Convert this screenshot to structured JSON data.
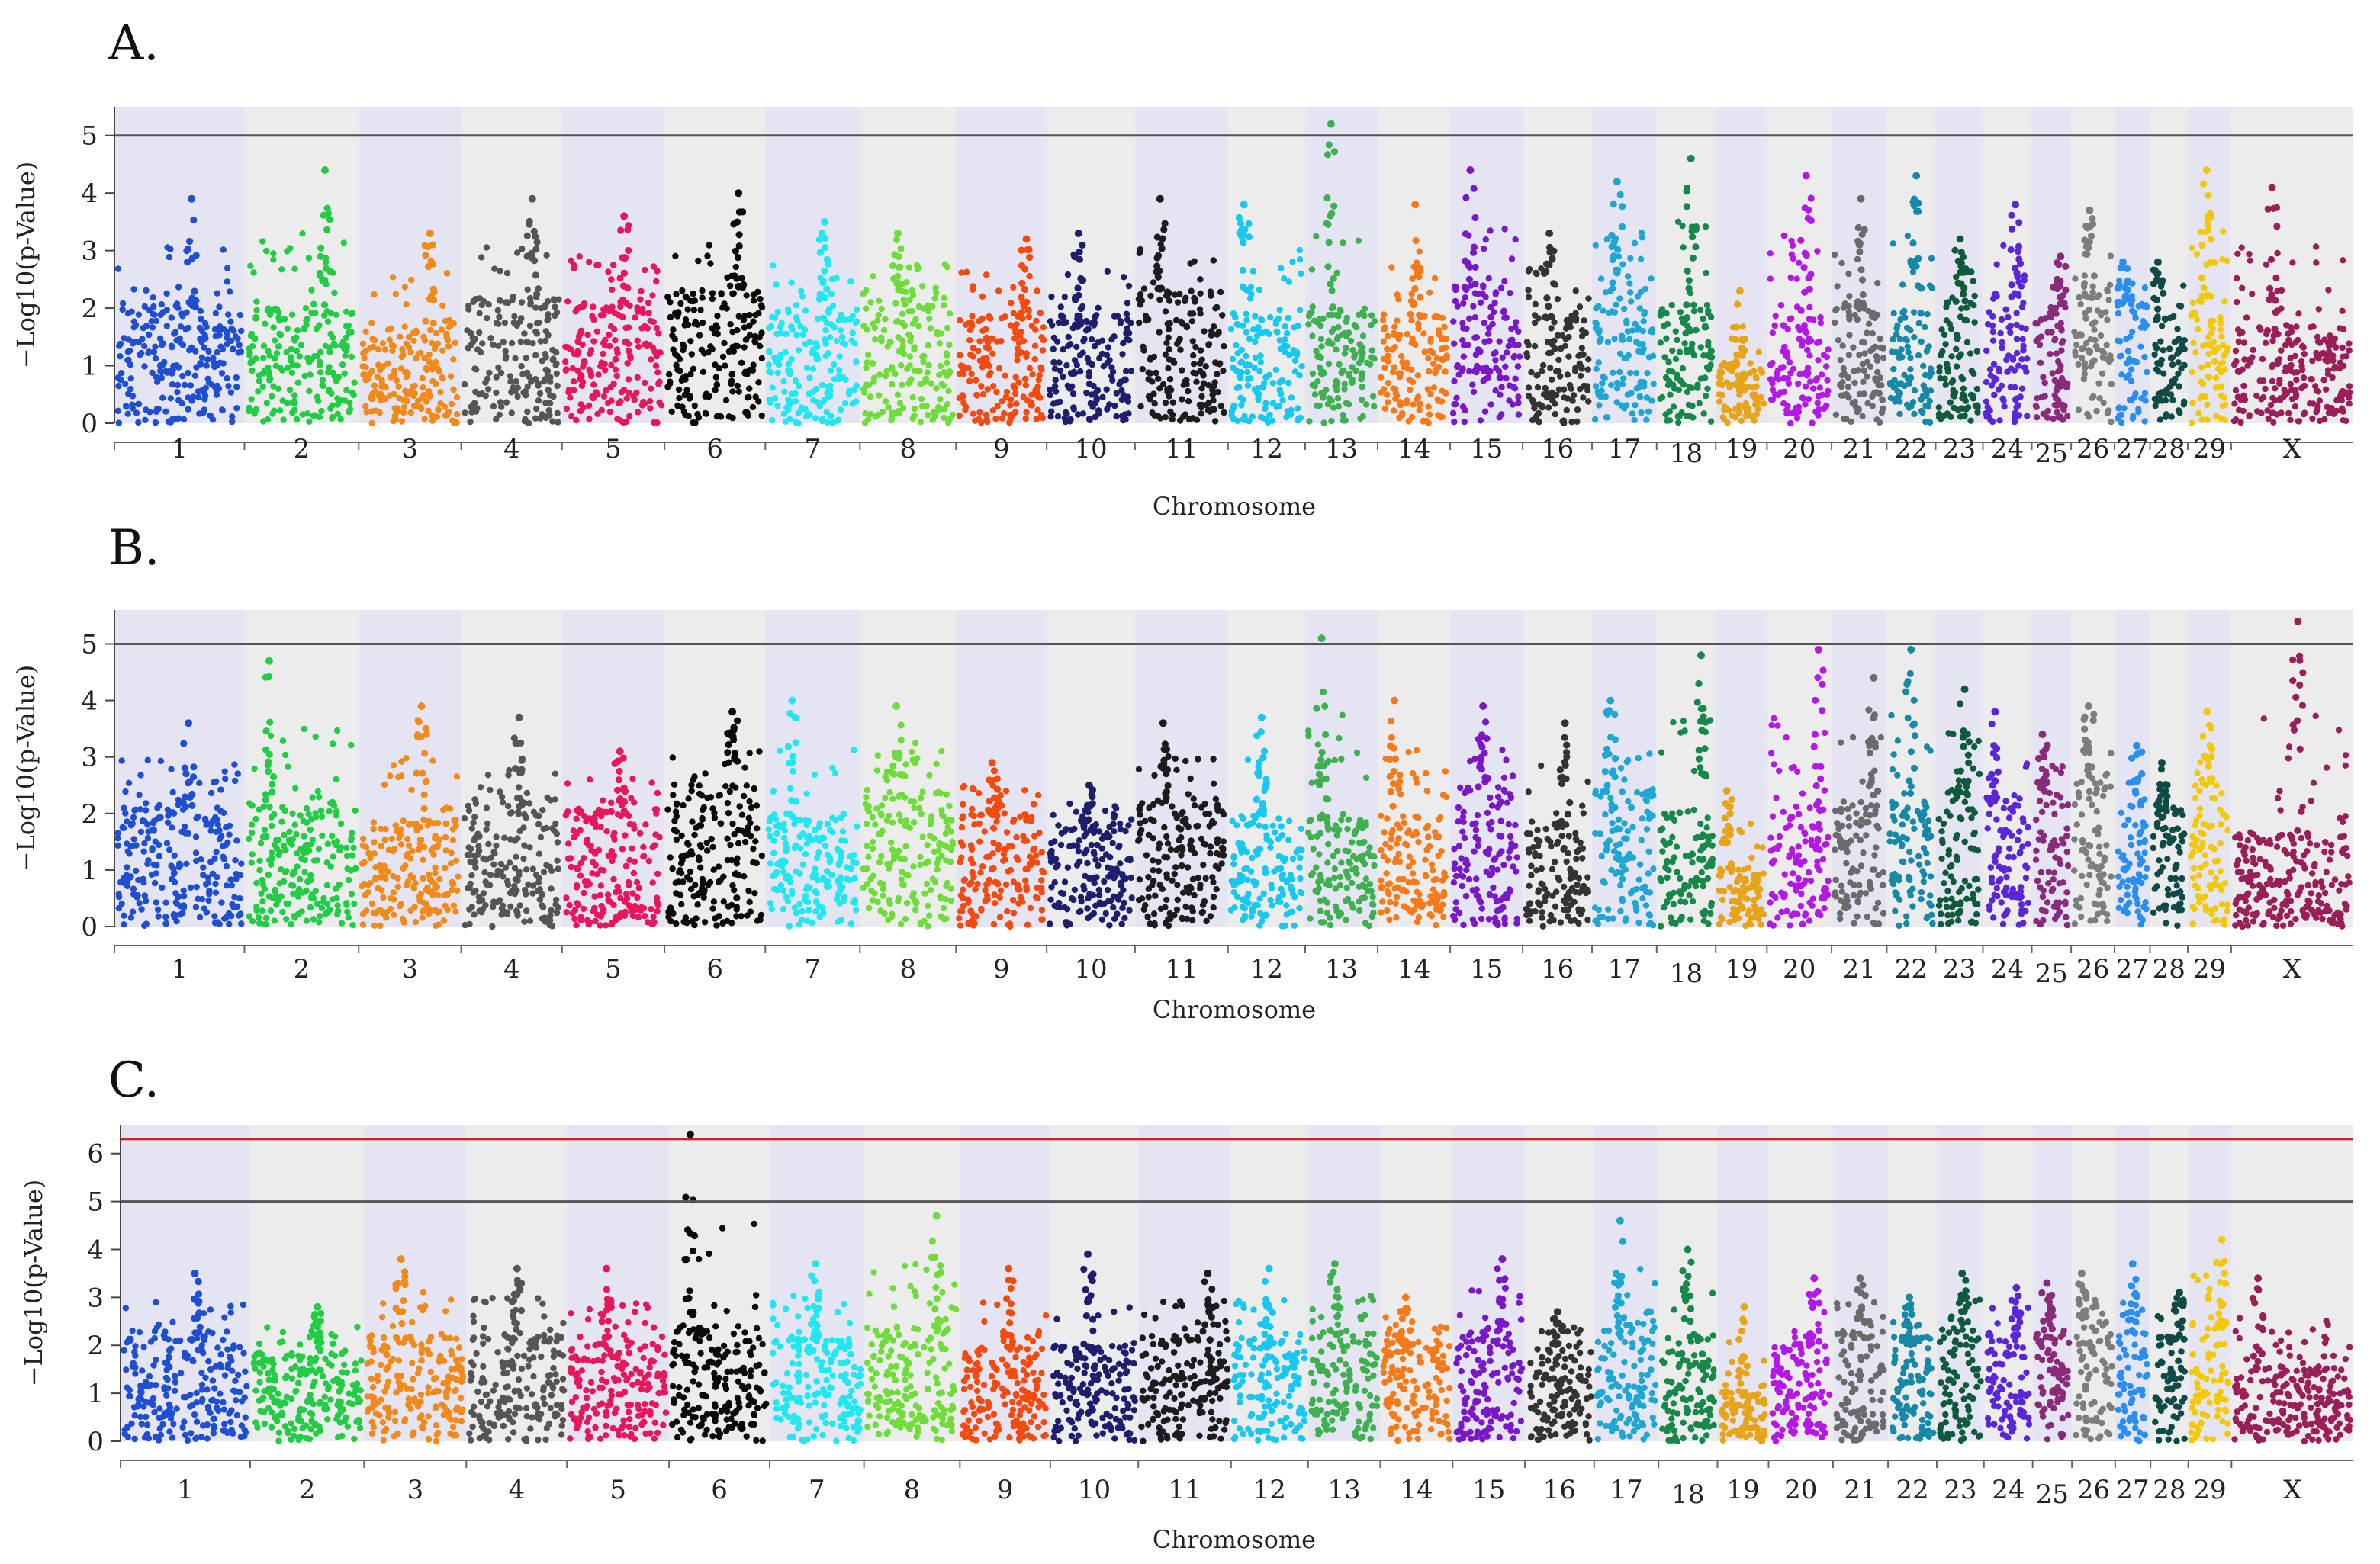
{
  "chart_data": [
    {
      "type": "scatter",
      "subtype": "manhattan",
      "panel_label": "A.",
      "xlabel": "Chromosome",
      "ylabel": "−Log10(p-Value)",
      "ylim": [
        0,
        5.5
      ],
      "yticks": [
        0,
        1,
        2,
        3,
        4,
        5
      ],
      "thresholds": [
        {
          "value": 5.0,
          "color": "#555555"
        }
      ],
      "categories": [
        "1",
        "2",
        "3",
        "4",
        "5",
        "6",
        "7",
        "8",
        "9",
        "10",
        "11",
        "12",
        "13",
        "14",
        "15",
        "16",
        "17",
        "18",
        "19",
        "20",
        "21",
        "22",
        "23",
        "24",
        "25",
        "26",
        "27",
        "28",
        "29",
        "X"
      ],
      "series": [
        {
          "name": "1",
          "color": "#1f4fd0",
          "base": 2.0,
          "peak": 3.9
        },
        {
          "name": "2",
          "color": "#22cc44",
          "base": 1.9,
          "peak": 4.4
        },
        {
          "name": "3",
          "color": "#f08a1a",
          "base": 1.6,
          "peak": 3.3
        },
        {
          "name": "4",
          "color": "#555555",
          "base": 2.1,
          "peak": 3.9
        },
        {
          "name": "5",
          "color": "#e6175a",
          "base": 2.0,
          "peak": 3.6
        },
        {
          "name": "6",
          "color": "#0a0a0a",
          "base": 2.2,
          "peak": 4.0
        },
        {
          "name": "7",
          "color": "#22e6f0",
          "base": 1.8,
          "peak": 3.5
        },
        {
          "name": "8",
          "color": "#6fdc3c",
          "base": 2.2,
          "peak": 3.3
        },
        {
          "name": "9",
          "color": "#f24a0f",
          "base": 1.8,
          "peak": 3.2
        },
        {
          "name": "10",
          "color": "#1e1e6e",
          "base": 1.8,
          "peak": 3.3
        },
        {
          "name": "11",
          "color": "#1c1c1c",
          "base": 2.2,
          "peak": 3.9
        },
        {
          "name": "12",
          "color": "#18c8f0",
          "base": 1.9,
          "peak": 3.8
        },
        {
          "name": "13",
          "color": "#3fb04f",
          "base": 1.9,
          "peak": 5.2
        },
        {
          "name": "14",
          "color": "#f57a1a",
          "base": 1.8,
          "peak": 3.8
        },
        {
          "name": "15",
          "color": "#7a18c8",
          "base": 2.3,
          "peak": 4.4
        },
        {
          "name": "16",
          "color": "#333333",
          "base": 1.8,
          "peak": 3.3
        },
        {
          "name": "17",
          "color": "#1fa6d2",
          "base": 2.3,
          "peak": 4.2
        },
        {
          "name": "18",
          "color": "#16884a",
          "base": 2.0,
          "peak": 4.6
        },
        {
          "name": "19",
          "color": "#e8a418",
          "base": 1.0,
          "peak": 2.3
        },
        {
          "name": "20",
          "color": "#b418e6",
          "base": 1.8,
          "peak": 4.3
        },
        {
          "name": "21",
          "color": "#6b6b6b",
          "base": 2.0,
          "peak": 3.9
        },
        {
          "name": "22",
          "color": "#1689a8",
          "base": 1.9,
          "peak": 4.3
        },
        {
          "name": "23",
          "color": "#0e5a3a",
          "base": 2.1,
          "peak": 3.2
        },
        {
          "name": "24",
          "color": "#5a26d8",
          "base": 2.2,
          "peak": 3.8
        },
        {
          "name": "25",
          "color": "#8a2a7a",
          "base": 1.9,
          "peak": 2.9
        },
        {
          "name": "26",
          "color": "#7d7d7d",
          "base": 2.4,
          "peak": 3.7
        },
        {
          "name": "27",
          "color": "#2a8ef0",
          "base": 2.0,
          "peak": 2.8
        },
        {
          "name": "28",
          "color": "#0f4a46",
          "base": 1.8,
          "peak": 2.8
        },
        {
          "name": "29",
          "color": "#f2c80a",
          "base": 2.2,
          "peak": 4.4
        },
        {
          "name": "X",
          "color": "#9a1e5a",
          "base": 1.6,
          "peak": 4.1
        }
      ]
    },
    {
      "type": "scatter",
      "subtype": "manhattan",
      "panel_label": "B.",
      "xlabel": "Chromosome",
      "ylabel": "−Log10(p-Value)",
      "ylim": [
        0,
        5.6
      ],
      "yticks": [
        0,
        1,
        2,
        3,
        4,
        5
      ],
      "thresholds": [
        {
          "value": 5.0,
          "color": "#555555"
        }
      ],
      "categories": [
        "1",
        "2",
        "3",
        "4",
        "5",
        "6",
        "7",
        "8",
        "9",
        "10",
        "11",
        "12",
        "13",
        "14",
        "15",
        "16",
        "17",
        "18",
        "19",
        "20",
        "21",
        "22",
        "23",
        "24",
        "25",
        "26",
        "27",
        "28",
        "29",
        "X"
      ],
      "series": [
        {
          "name": "1",
          "color": "#1f4fd0",
          "base": 2.0,
          "peak": 3.6
        },
        {
          "name": "2",
          "color": "#22cc44",
          "base": 2.1,
          "peak": 4.7
        },
        {
          "name": "3",
          "color": "#f08a1a",
          "base": 1.8,
          "peak": 3.9
        },
        {
          "name": "4",
          "color": "#555555",
          "base": 2.1,
          "peak": 3.7
        },
        {
          "name": "5",
          "color": "#e6175a",
          "base": 2.0,
          "peak": 3.1
        },
        {
          "name": "6",
          "color": "#0a0a0a",
          "base": 2.4,
          "peak": 3.8
        },
        {
          "name": "7",
          "color": "#22e6f0",
          "base": 1.9,
          "peak": 4.0
        },
        {
          "name": "8",
          "color": "#6fdc3c",
          "base": 2.3,
          "peak": 3.9
        },
        {
          "name": "9",
          "color": "#f24a0f",
          "base": 1.9,
          "peak": 2.9
        },
        {
          "name": "10",
          "color": "#1e1e6e",
          "base": 1.7,
          "peak": 2.5
        },
        {
          "name": "11",
          "color": "#1c1c1c",
          "base": 2.2,
          "peak": 3.6
        },
        {
          "name": "12",
          "color": "#18c8f0",
          "base": 1.9,
          "peak": 3.7
        },
        {
          "name": "13",
          "color": "#3fb04f",
          "base": 1.9,
          "peak": 5.1
        },
        {
          "name": "14",
          "color": "#f57a1a",
          "base": 1.9,
          "peak": 4.0
        },
        {
          "name": "15",
          "color": "#7a18c8",
          "base": 2.4,
          "peak": 3.9
        },
        {
          "name": "16",
          "color": "#333333",
          "base": 1.8,
          "peak": 3.6
        },
        {
          "name": "17",
          "color": "#1fa6d2",
          "base": 2.3,
          "peak": 4.0
        },
        {
          "name": "18",
          "color": "#16884a",
          "base": 2.0,
          "peak": 4.8
        },
        {
          "name": "19",
          "color": "#e8a418",
          "base": 1.0,
          "peak": 2.4
        },
        {
          "name": "20",
          "color": "#b418e6",
          "base": 2.0,
          "peak": 4.9
        },
        {
          "name": "21",
          "color": "#6b6b6b",
          "base": 2.1,
          "peak": 4.4
        },
        {
          "name": "22",
          "color": "#1689a8",
          "base": 2.1,
          "peak": 4.9
        },
        {
          "name": "23",
          "color": "#0e5a3a",
          "base": 2.3,
          "peak": 4.2
        },
        {
          "name": "24",
          "color": "#5a26d8",
          "base": 2.2,
          "peak": 3.8
        },
        {
          "name": "25",
          "color": "#8a2a7a",
          "base": 2.2,
          "peak": 3.4
        },
        {
          "name": "26",
          "color": "#7d7d7d",
          "base": 2.5,
          "peak": 3.9
        },
        {
          "name": "27",
          "color": "#2a8ef0",
          "base": 2.1,
          "peak": 3.2
        },
        {
          "name": "28",
          "color": "#0f4a46",
          "base": 2.0,
          "peak": 2.9
        },
        {
          "name": "29",
          "color": "#f2c80a",
          "base": 2.4,
          "peak": 3.8
        },
        {
          "name": "X",
          "color": "#9a1e5a",
          "base": 1.6,
          "peak": 5.4
        }
      ]
    },
    {
      "type": "scatter",
      "subtype": "manhattan",
      "panel_label": "C.",
      "xlabel": "Chromosome",
      "ylabel": "−Log10(p-Value)",
      "ylim": [
        0,
        6.6
      ],
      "yticks": [
        0,
        1,
        2,
        3,
        4,
        5,
        6
      ],
      "thresholds": [
        {
          "value": 5.0,
          "color": "#555555"
        },
        {
          "value": 6.3,
          "color": "#cc2222"
        }
      ],
      "categories": [
        "1",
        "2",
        "3",
        "4",
        "5",
        "6",
        "7",
        "8",
        "9",
        "10",
        "11",
        "12",
        "13",
        "14",
        "15",
        "16",
        "17",
        "18",
        "19",
        "20",
        "21",
        "22",
        "23",
        "24",
        "25",
        "26",
        "27",
        "28",
        "29",
        "X"
      ],
      "series": [
        {
          "name": "1",
          "color": "#1f4fd0",
          "base": 2.2,
          "peak": 3.5
        },
        {
          "name": "2",
          "color": "#22cc44",
          "base": 1.8,
          "peak": 2.8
        },
        {
          "name": "3",
          "color": "#f08a1a",
          "base": 2.1,
          "peak": 3.8
        },
        {
          "name": "4",
          "color": "#555555",
          "base": 2.1,
          "peak": 3.6
        },
        {
          "name": "5",
          "color": "#e6175a",
          "base": 2.0,
          "peak": 3.6
        },
        {
          "name": "6",
          "color": "#0a0a0a",
          "base": 2.3,
          "peak": 6.4
        },
        {
          "name": "7",
          "color": "#22e6f0",
          "base": 2.1,
          "peak": 3.7
        },
        {
          "name": "8",
          "color": "#6fdc3c",
          "base": 2.3,
          "peak": 4.7
        },
        {
          "name": "9",
          "color": "#f24a0f",
          "base": 1.9,
          "peak": 3.6
        },
        {
          "name": "10",
          "color": "#1e1e6e",
          "base": 1.9,
          "peak": 3.9
        },
        {
          "name": "11",
          "color": "#1c1c1c",
          "base": 2.1,
          "peak": 3.5
        },
        {
          "name": "12",
          "color": "#18c8f0",
          "base": 2.0,
          "peak": 3.6
        },
        {
          "name": "13",
          "color": "#3fb04f",
          "base": 2.2,
          "peak": 3.7
        },
        {
          "name": "14",
          "color": "#f57a1a",
          "base": 2.0,
          "peak": 3.0
        },
        {
          "name": "15",
          "color": "#7a18c8",
          "base": 2.2,
          "peak": 3.8
        },
        {
          "name": "16",
          "color": "#333333",
          "base": 1.9,
          "peak": 2.7
        },
        {
          "name": "17",
          "color": "#1fa6d2",
          "base": 2.4,
          "peak": 4.6
        },
        {
          "name": "18",
          "color": "#16884a",
          "base": 2.1,
          "peak": 4.0
        },
        {
          "name": "19",
          "color": "#e8a418",
          "base": 1.0,
          "peak": 2.8
        },
        {
          "name": "20",
          "color": "#b418e6",
          "base": 2.0,
          "peak": 3.4
        },
        {
          "name": "21",
          "color": "#6b6b6b",
          "base": 2.2,
          "peak": 3.4
        },
        {
          "name": "22",
          "color": "#1689a8",
          "base": 2.1,
          "peak": 3.0
        },
        {
          "name": "23",
          "color": "#0e5a3a",
          "base": 2.4,
          "peak": 3.5
        },
        {
          "name": "24",
          "color": "#5a26d8",
          "base": 2.2,
          "peak": 3.2
        },
        {
          "name": "25",
          "color": "#8a2a7a",
          "base": 2.2,
          "peak": 3.3
        },
        {
          "name": "26",
          "color": "#7d7d7d",
          "base": 2.4,
          "peak": 3.5
        },
        {
          "name": "27",
          "color": "#2a8ef0",
          "base": 2.2,
          "peak": 3.7
        },
        {
          "name": "28",
          "color": "#0f4a46",
          "base": 2.1,
          "peak": 3.1
        },
        {
          "name": "29",
          "color": "#f2c80a",
          "base": 2.4,
          "peak": 4.2
        },
        {
          "name": "X",
          "color": "#9a1e5a",
          "base": 1.5,
          "peak": 3.4
        }
      ]
    }
  ]
}
